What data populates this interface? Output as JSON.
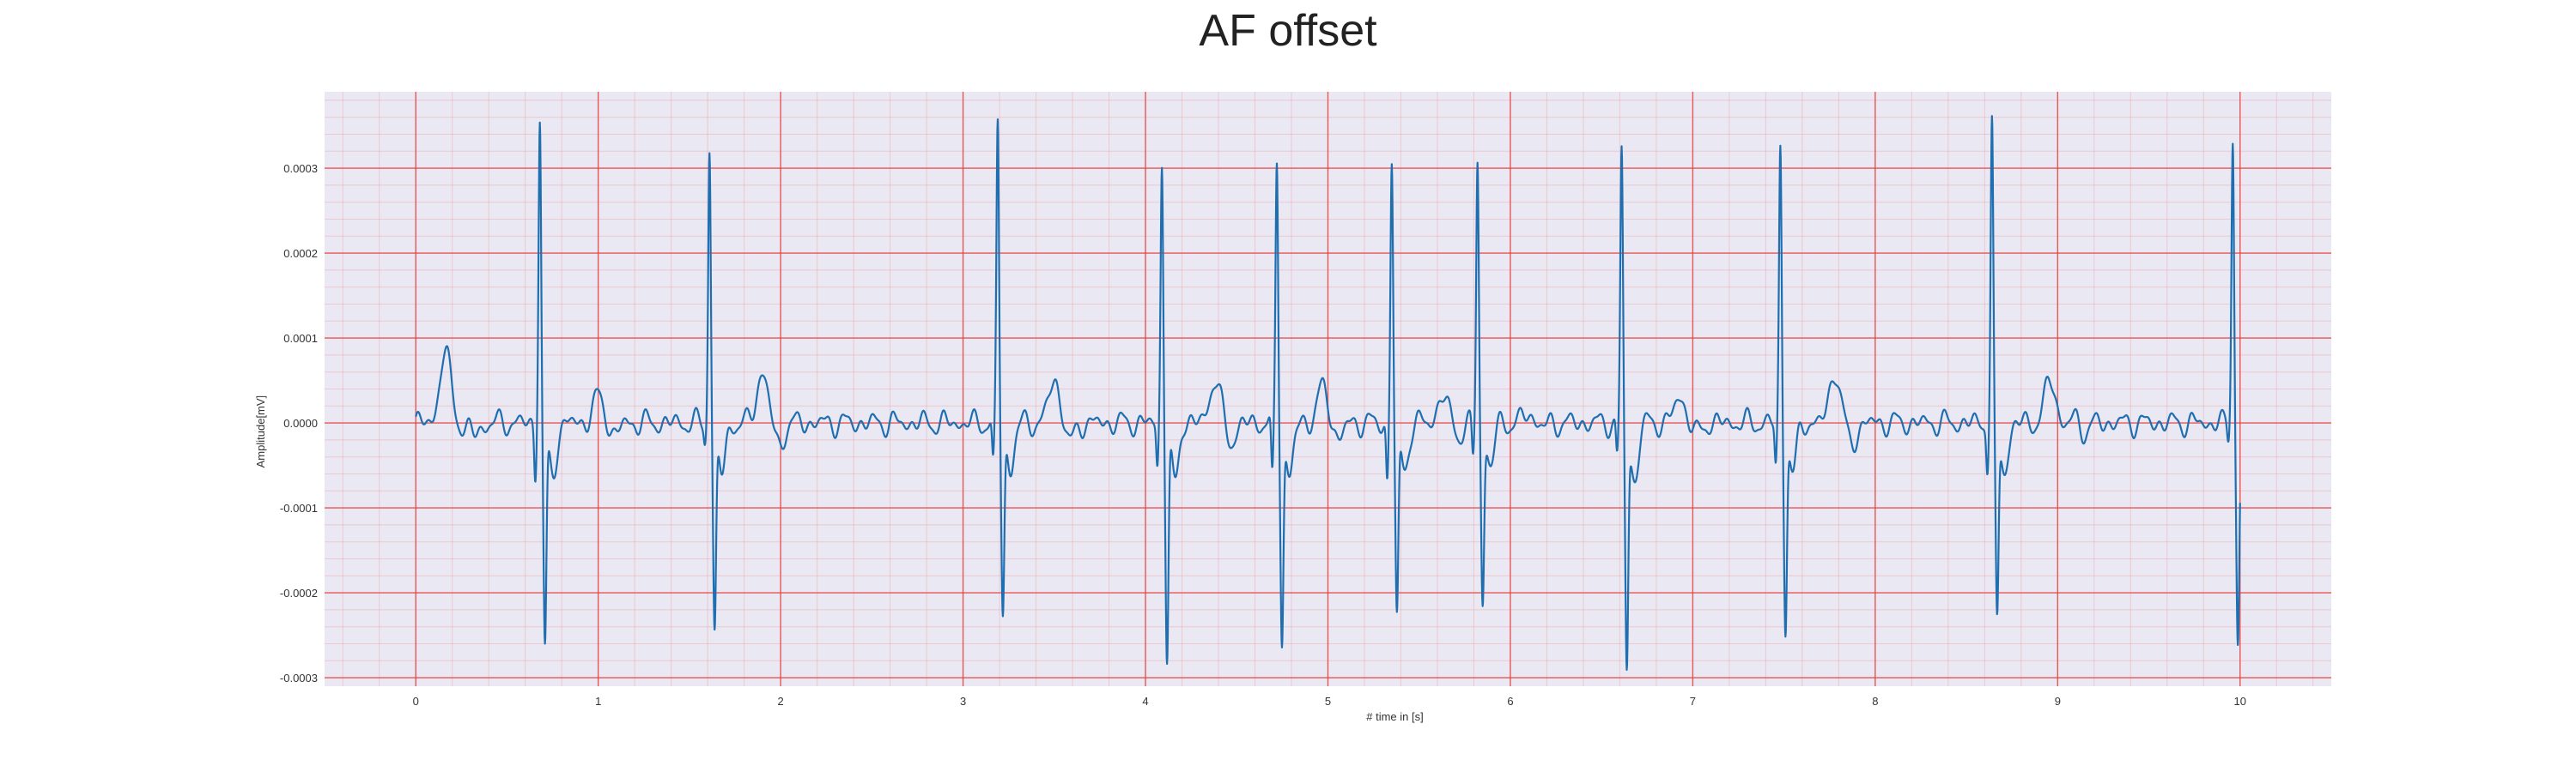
{
  "chart_data": {
    "type": "line",
    "title": "AF offset",
    "xlabel": "# time in [s]",
    "ylabel": "Amplitude[mV]",
    "xlim": [
      -0.5,
      10.5
    ],
    "ylim": [
      -0.00031,
      0.00039
    ],
    "x_ticks": [
      0,
      1,
      2,
      3,
      4,
      5,
      6,
      7,
      8,
      9,
      10
    ],
    "y_ticks": [
      -0.0003,
      -0.0002,
      -0.0001,
      0.0,
      0.0001,
      0.0002,
      0.0003
    ],
    "y_tick_labels": [
      "-0.0003",
      "-0.0002",
      "-0.0001",
      "0.0000",
      "0.0001",
      "0.0002",
      "0.0003"
    ],
    "grid": true,
    "grid_color": "#f08080",
    "background_color": "#eae8f2",
    "line_color": "#1f6fb0",
    "series": [
      {
        "x_start": 0,
        "x_end": 10,
        "baseline": 0.0,
        "qrs_complexes": [
          {
            "t": 0.68,
            "q": -6e-05,
            "r": 0.00036,
            "s": -0.00026
          },
          {
            "t": 1.61,
            "q": -2e-05,
            "r": 0.000325,
            "s": -0.00024
          },
          {
            "t": 3.19,
            "q": -5e-05,
            "r": 0.000355,
            "s": -0.00022
          },
          {
            "t": 4.09,
            "q": -5e-05,
            "r": 0.00031,
            "s": -0.000275
          },
          {
            "t": 4.72,
            "q": -7e-05,
            "r": 0.00031,
            "s": -0.00025
          },
          {
            "t": 5.35,
            "q": -7e-05,
            "r": 0.00031,
            "s": -0.000225
          },
          {
            "t": 5.82,
            "q": -4e-05,
            "r": 0.00031,
            "s": -0.000205
          },
          {
            "t": 6.61,
            "q": -4e-05,
            "r": 0.00032,
            "s": -0.00028
          },
          {
            "t": 7.48,
            "q": -5e-05,
            "r": 0.000325,
            "s": -0.000235
          },
          {
            "t": 8.64,
            "q": -5e-05,
            "r": 0.000355,
            "s": -0.00023
          },
          {
            "t": 9.96,
            "q": -2e-05,
            "r": 0.00034,
            "s": -0.00025
          }
        ],
        "waves": [
          {
            "t": 0.16,
            "a": 8e-05
          },
          {
            "t": 0.24,
            "a": 3e-05
          },
          {
            "t": 1.0,
            "a": 3e-05
          },
          {
            "t": 1.9,
            "a": 6e-05
          },
          {
            "t": 3.5,
            "a": 5e-05
          },
          {
            "t": 4.38,
            "a": 5e-05
          },
          {
            "t": 4.97,
            "a": 4e-05
          },
          {
            "t": 5.63,
            "a": 3e-05
          },
          {
            "t": 6.1,
            "a": 1e-05
          },
          {
            "t": 6.93,
            "a": 3e-05
          },
          {
            "t": 7.78,
            "a": 6e-05
          },
          {
            "t": 8.96,
            "a": 5e-05
          },
          {
            "t": 9.06,
            "a": 2e-05
          }
        ]
      }
    ]
  }
}
